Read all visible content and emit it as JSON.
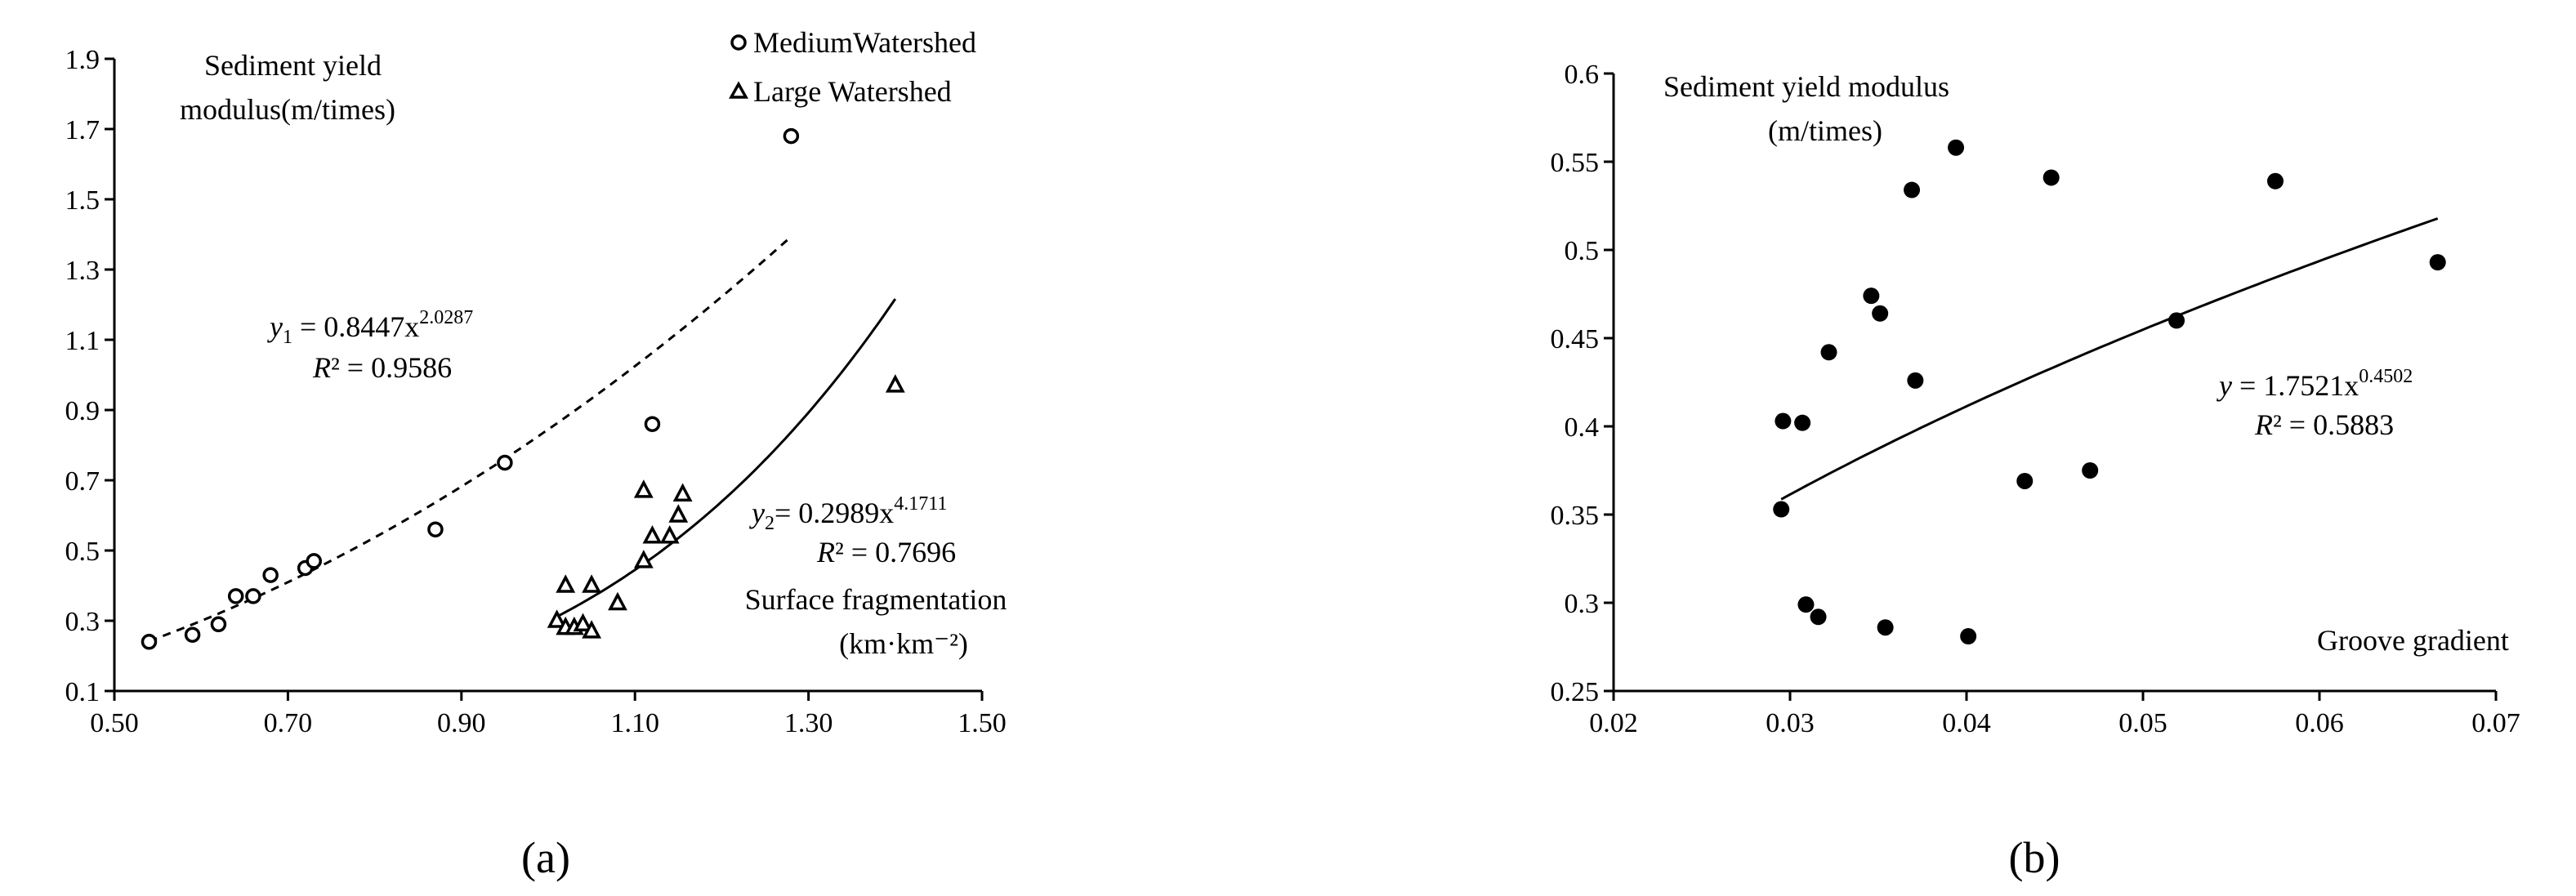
{
  "chart_data": [
    {
      "panel_label": "(a)",
      "type": "scatter",
      "xlim": [
        0.5,
        1.5
      ],
      "ylim": [
        0.1,
        1.9
      ],
      "x_ticks": [
        "0.50",
        "0.70",
        "0.90",
        "1.10",
        "1.30",
        "1.50"
      ],
      "y_ticks": [
        "0.1",
        "0.3",
        "0.5",
        "0.7",
        "0.9",
        "1.1",
        "1.3",
        "1.5",
        "1.7",
        "1.9"
      ],
      "ylabel_lines": [
        "Sediment yield",
        "modulus(m/times)"
      ],
      "xlabel_lines": [
        "Surface fragmentation",
        "(km·km⁻²)"
      ],
      "legend_position": "top-right",
      "series": [
        {
          "name": "MediumWatershed",
          "marker": "circle",
          "x": [
            0.54,
            0.59,
            0.62,
            0.64,
            0.66,
            0.68,
            0.72,
            0.73,
            0.87,
            0.95,
            1.12,
            1.28
          ],
          "y": [
            0.24,
            0.26,
            0.29,
            0.37,
            0.37,
            0.43,
            0.45,
            0.47,
            0.56,
            0.75,
            0.86,
            1.68
          ],
          "fit": {
            "type": "power",
            "a": 0.8447,
            "b": 2.0287,
            "x_range": [
              0.54,
              1.28
            ],
            "style": "dashed",
            "equation_prefix": "y",
            "equation_sub": "1",
            "equation_mid": " = 0.8447x",
            "equation_exp": "2.0287",
            "r2_prefix": "R",
            "r2_rest": "² = 0.9586"
          }
        },
        {
          "name": "Large Watershed",
          "marker": "triangle",
          "x": [
            1.01,
            1.02,
            1.02,
            1.03,
            1.04,
            1.05,
            1.05,
            1.08,
            1.11,
            1.11,
            1.12,
            1.14,
            1.15,
            1.155,
            1.4
          ],
          "y": [
            0.3,
            0.28,
            0.4,
            0.28,
            0.29,
            0.27,
            0.4,
            0.35,
            0.47,
            0.67,
            0.54,
            0.54,
            0.6,
            0.66,
            0.97
          ],
          "fit": {
            "type": "power",
            "a": 0.2989,
            "b": 4.1711,
            "x_range": [
              1.01,
              1.4
            ],
            "style": "solid",
            "equation_prefix": "y",
            "equation_sub": "2",
            "equation_mid": "= 0.2989x",
            "equation_exp": "4.1711",
            "r2_prefix": "R",
            "r2_rest": "² = 0.7696"
          }
        }
      ]
    },
    {
      "panel_label": "(b)",
      "type": "scatter",
      "xlim": [
        0.02,
        0.07
      ],
      "ylim": [
        0.25,
        0.6
      ],
      "x_ticks": [
        "0.02",
        "0.03",
        "0.04",
        "0.05",
        "0.06",
        "0.07"
      ],
      "y_ticks": [
        "0.25",
        "0.3",
        "0.35",
        "0.4",
        "0.45",
        "0.5",
        "0.55",
        "0.6"
      ],
      "ylabel_lines": [
        "Sediment yield modulus",
        "(m/times)"
      ],
      "xlabel_lines": [
        "Groove gradient"
      ],
      "series": [
        {
          "marker": "filled-circle",
          "x": [
            0.0295,
            0.0296,
            0.0307,
            0.0309,
            0.0316,
            0.0322,
            0.0346,
            0.0351,
            0.0354,
            0.0369,
            0.0371,
            0.0394,
            0.0401,
            0.0433,
            0.0448,
            0.047,
            0.0519,
            0.0575,
            0.0667
          ],
          "y": [
            0.353,
            0.403,
            0.402,
            0.299,
            0.292,
            0.442,
            0.474,
            0.464,
            0.286,
            0.534,
            0.426,
            0.558,
            0.281,
            0.369,
            0.541,
            0.375,
            0.46,
            0.539,
            0.493
          ],
          "fit": {
            "type": "power",
            "a": 1.7521,
            "b": 0.4502,
            "x_range": [
              0.0295,
              0.0667
            ],
            "style": "solid",
            "equation_prefix": "y",
            "equation_mid": " = 1.7521x",
            "equation_exp": "0.4502",
            "r2_prefix": "R",
            "r2_rest": "² = 0.5883"
          }
        }
      ]
    }
  ]
}
